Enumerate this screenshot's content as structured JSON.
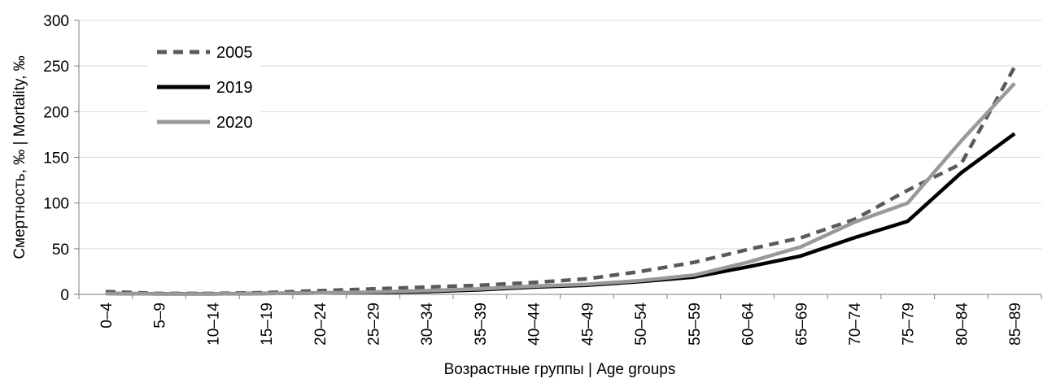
{
  "chart_data": {
    "type": "line",
    "xlabel": "Возрастные группы | Age groups",
    "ylabel": "Смертность, ‰ | Mortality, ‰",
    "ylim": [
      0,
      300
    ],
    "yticks": [
      0,
      50,
      100,
      150,
      200,
      250,
      300
    ],
    "grid": "horizontal",
    "legend_position": "top-left",
    "categories": [
      "0–4",
      "5–9",
      "10–14",
      "15–19",
      "20–24",
      "25–29",
      "30–34",
      "35–39",
      "40–44",
      "45–49",
      "50–54",
      "55–59",
      "60–64",
      "65–69",
      "70–74",
      "75–79",
      "80–84",
      "85–89"
    ],
    "series": [
      {
        "name": "2005",
        "style": "dashed",
        "color": "#5a5a5a",
        "values": [
          3,
          1,
          1,
          2,
          4,
          6,
          8,
          10,
          13,
          17,
          25,
          35,
          49,
          62,
          82,
          114,
          143,
          249
        ]
      },
      {
        "name": "2019",
        "style": "solid",
        "color": "#000000",
        "values": [
          1,
          0.5,
          0.5,
          1,
          1.5,
          2,
          3,
          5,
          8,
          10,
          14,
          19,
          30,
          42,
          62,
          80,
          133,
          176
        ]
      },
      {
        "name": "2020",
        "style": "solid",
        "color": "#999999",
        "values": [
          1,
          0.5,
          0.5,
          1,
          1.5,
          2.5,
          4,
          6,
          9,
          11,
          15,
          21,
          35,
          52,
          79,
          100,
          168,
          231
        ]
      }
    ]
  }
}
